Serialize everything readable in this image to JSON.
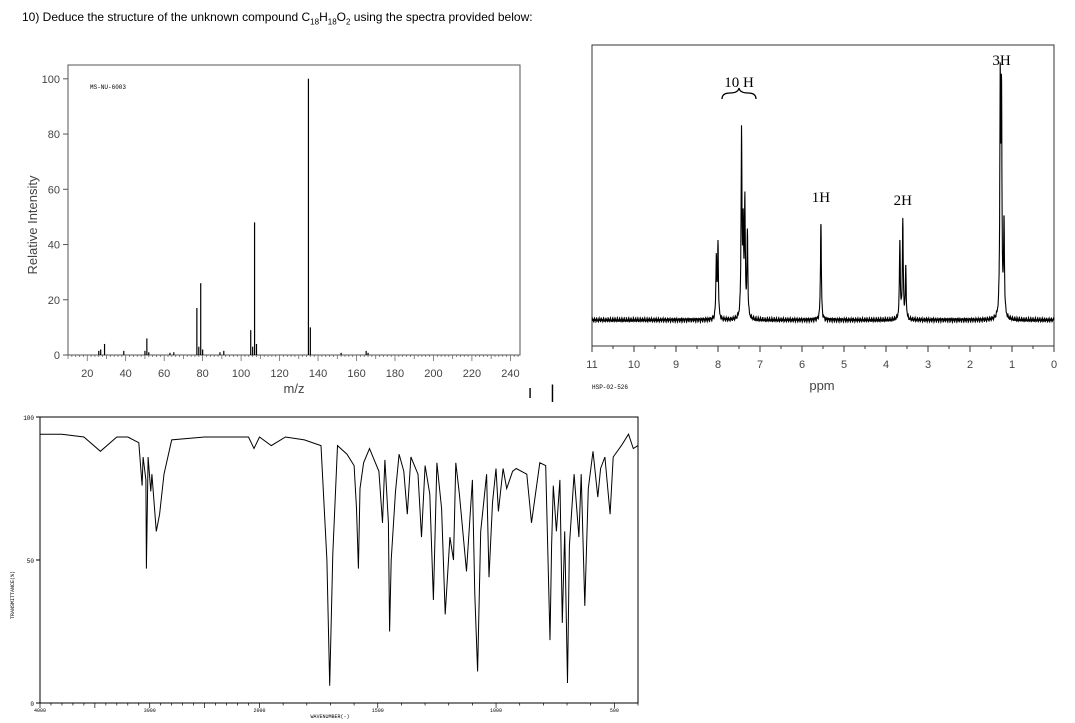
{
  "question": {
    "prefix": "10) Deduce the structure of the unknown compound C",
    "sub1": "18",
    "mid1": "H",
    "sub2": "18",
    "mid2": "O",
    "sub3": "2",
    "suffix": " using the spectra provided below:"
  },
  "separator_marks": [
    "I",
    "|"
  ],
  "chart_data": [
    {
      "type": "bar",
      "id": "mass-spectrum",
      "code": "MS-NU-6003",
      "xlabel": "m/z",
      "ylabel": "Relative Intensity",
      "xlim": [
        10,
        245
      ],
      "ylim": [
        0,
        105
      ],
      "xticks": [
        20,
        40,
        60,
        80,
        100,
        120,
        140,
        160,
        180,
        200,
        220,
        240
      ],
      "yticks": [
        0,
        20,
        40,
        60,
        80,
        100
      ],
      "peaks": [
        {
          "x": 26,
          "y": 1.5
        },
        {
          "x": 27,
          "y": 2
        },
        {
          "x": 29,
          "y": 4
        },
        {
          "x": 39,
          "y": 1.5
        },
        {
          "x": 50,
          "y": 1.5
        },
        {
          "x": 51,
          "y": 6
        },
        {
          "x": 52,
          "y": 1
        },
        {
          "x": 63,
          "y": 0.8
        },
        {
          "x": 65,
          "y": 1
        },
        {
          "x": 77,
          "y": 17
        },
        {
          "x": 78,
          "y": 3
        },
        {
          "x": 79,
          "y": 26
        },
        {
          "x": 80,
          "y": 2
        },
        {
          "x": 89,
          "y": 1
        },
        {
          "x": 91,
          "y": 1.5
        },
        {
          "x": 105,
          "y": 9
        },
        {
          "x": 106,
          "y": 3
        },
        {
          "x": 107,
          "y": 48
        },
        {
          "x": 108,
          "y": 4
        },
        {
          "x": 135,
          "y": 100
        },
        {
          "x": 136,
          "y": 10
        },
        {
          "x": 152,
          "y": 0.8
        },
        {
          "x": 165,
          "y": 1.5
        },
        {
          "x": 166,
          "y": 0.8
        }
      ]
    },
    {
      "type": "line",
      "id": "h-nmr-spectrum",
      "code": "HSP-02-526",
      "xlabel": "ppm",
      "xlim": [
        11,
        0
      ],
      "xticks": [
        11,
        10,
        9,
        8,
        7,
        6,
        5,
        4,
        3,
        2,
        1,
        0
      ],
      "reversed_x": true,
      "peaks": [
        {
          "shift": 8.04,
          "height": 0.33
        },
        {
          "shift": 8.0,
          "height": 0.39
        },
        {
          "shift": 7.44,
          "height": 0.98
        },
        {
          "shift": 7.4,
          "height": 0.45
        },
        {
          "shift": 7.36,
          "height": 0.6
        },
        {
          "shift": 7.3,
          "height": 0.45
        },
        {
          "shift": 5.55,
          "height": 0.52
        },
        {
          "shift": 3.67,
          "height": 0.42
        },
        {
          "shift": 3.6,
          "height": 0.52
        },
        {
          "shift": 3.53,
          "height": 0.27
        },
        {
          "shift": 1.28,
          "height": 1.2
        },
        {
          "shift": 1.25,
          "height": 1.12
        },
        {
          "shift": 1.19,
          "height": 0.5
        }
      ],
      "integrations": [
        {
          "label": "10 H",
          "shift": 7.5
        },
        {
          "label": "1H",
          "shift": 5.55
        },
        {
          "label": "2H",
          "shift": 3.6
        },
        {
          "label": "3H",
          "shift": 1.25
        }
      ]
    },
    {
      "type": "line",
      "id": "ir-spectrum",
      "xlabel": "WAVENUMBER(-)",
      "ylabel": "TRANSMITTANCE(%)",
      "xlim": [
        4000,
        400
      ],
      "ylim": [
        0,
        100
      ],
      "xticks": [
        4000,
        3000,
        2000,
        1500,
        1000,
        500
      ],
      "yticks": [
        0,
        50,
        100
      ],
      "points": [
        [
          4000,
          94
        ],
        [
          3800,
          94
        ],
        [
          3600,
          93
        ],
        [
          3450,
          88
        ],
        [
          3300,
          93
        ],
        [
          3200,
          93
        ],
        [
          3100,
          91
        ],
        [
          3070,
          76
        ],
        [
          3060,
          86
        ],
        [
          3035,
          78
        ],
        [
          3030,
          47
        ],
        [
          3015,
          86
        ],
        [
          2990,
          74
        ],
        [
          2980,
          80
        ],
        [
          2940,
          60
        ],
        [
          2910,
          66
        ],
        [
          2870,
          80
        ],
        [
          2800,
          92
        ],
        [
          2500,
          93
        ],
        [
          2100,
          93
        ],
        [
          2050,
          89
        ],
        [
          2000,
          93
        ],
        [
          1950,
          90
        ],
        [
          1890,
          93
        ],
        [
          1810,
          92
        ],
        [
          1740,
          90
        ],
        [
          1715,
          50
        ],
        [
          1703,
          6
        ],
        [
          1690,
          52
        ],
        [
          1670,
          90
        ],
        [
          1630,
          87
        ],
        [
          1600,
          83
        ],
        [
          1590,
          68
        ],
        [
          1582,
          47
        ],
        [
          1575,
          75
        ],
        [
          1560,
          84
        ],
        [
          1535,
          89
        ],
        [
          1495,
          81
        ],
        [
          1480,
          63
        ],
        [
          1470,
          85
        ],
        [
          1455,
          63
        ],
        [
          1450,
          25
        ],
        [
          1443,
          50
        ],
        [
          1425,
          74
        ],
        [
          1410,
          87
        ],
        [
          1390,
          81
        ],
        [
          1375,
          66
        ],
        [
          1360,
          86
        ],
        [
          1330,
          80
        ],
        [
          1315,
          58
        ],
        [
          1300,
          83
        ],
        [
          1280,
          73
        ],
        [
          1265,
          36
        ],
        [
          1250,
          84
        ],
        [
          1230,
          68
        ],
        [
          1215,
          31
        ],
        [
          1195,
          58
        ],
        [
          1180,
          50
        ],
        [
          1170,
          84
        ],
        [
          1155,
          73
        ],
        [
          1125,
          46
        ],
        [
          1100,
          78
        ],
        [
          1090,
          38
        ],
        [
          1078,
          11
        ],
        [
          1065,
          60
        ],
        [
          1040,
          80
        ],
        [
          1030,
          44
        ],
        [
          1015,
          70
        ],
        [
          1000,
          82
        ],
        [
          990,
          67
        ],
        [
          970,
          82
        ],
        [
          955,
          75
        ],
        [
          930,
          81
        ],
        [
          915,
          82
        ],
        [
          870,
          80
        ],
        [
          850,
          63
        ],
        [
          815,
          84
        ],
        [
          790,
          83
        ],
        [
          772,
          22
        ],
        [
          765,
          55
        ],
        [
          758,
          76
        ],
        [
          745,
          60
        ],
        [
          730,
          78
        ],
        [
          720,
          28
        ],
        [
          710,
          60
        ],
        [
          698,
          7
        ],
        [
          690,
          55
        ],
        [
          670,
          80
        ],
        [
          650,
          58
        ],
        [
          640,
          80
        ],
        [
          625,
          34
        ],
        [
          610,
          75
        ],
        [
          590,
          88
        ],
        [
          570,
          72
        ],
        [
          558,
          82
        ],
        [
          540,
          86
        ],
        [
          518,
          66
        ],
        [
          505,
          86
        ],
        [
          470,
          90
        ],
        [
          440,
          94
        ],
        [
          420,
          89
        ],
        [
          400,
          90
        ]
      ]
    }
  ]
}
